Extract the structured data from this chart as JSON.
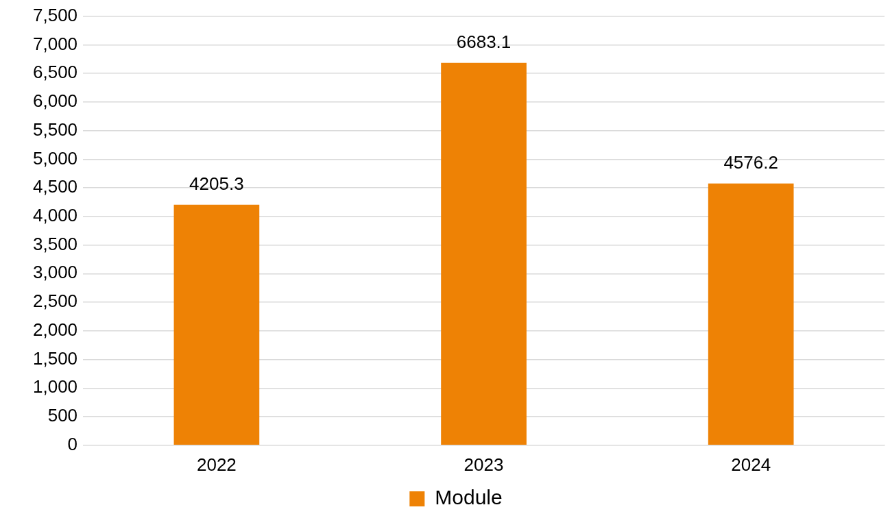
{
  "chart_data": {
    "type": "bar",
    "categories": [
      "2022",
      "2023",
      "2024"
    ],
    "series": [
      {
        "name": "Module",
        "color": "#ee8205",
        "values": [
          4205.3,
          6683.1,
          4576.2
        ]
      }
    ],
    "ylim": [
      0,
      7500
    ],
    "yticks": [
      0,
      500,
      {
        "value": 1000,
        "label": "1,000"
      },
      {
        "value": 1500,
        "label": "1,500"
      },
      {
        "value": 2000,
        "label": "2,000"
      },
      {
        "value": 2500,
        "label": "2,500"
      },
      {
        "value": 3000,
        "label": "3,000"
      },
      {
        "value": 3500,
        "label": "3,500"
      },
      {
        "value": 4000,
        "label": "4,000"
      },
      {
        "value": 4500,
        "label": "4,500"
      },
      {
        "value": 5000,
        "label": "5,000"
      },
      {
        "value": 5500,
        "label": "5,500"
      },
      {
        "value": 6000,
        "label": "6,000"
      },
      {
        "value": 6500,
        "label": "6,500"
      },
      {
        "value": 7000,
        "label": "7,000"
      },
      {
        "value": 7500,
        "label": "7,500"
      }
    ],
    "grid": "y",
    "legend": "bottom",
    "data_labels": true
  }
}
